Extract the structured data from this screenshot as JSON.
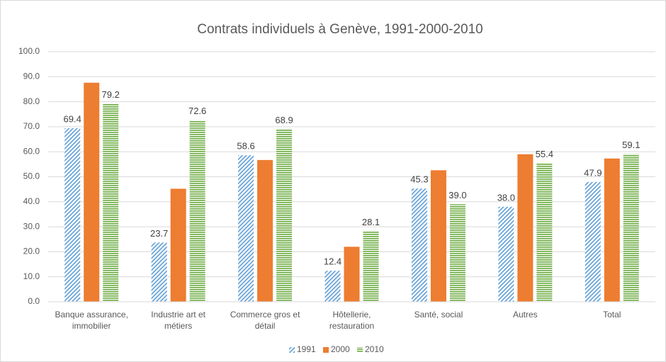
{
  "chart_data": {
    "type": "bar",
    "title": "Contrats individuels à Genève, 1991-2000-2010",
    "categories": [
      "Banque assurance,\nimmobilier",
      "Industrie art et\nmétiers",
      "Commerce gros et\ndétail",
      "Hôtellerie,\nrestauration",
      "Santé, social",
      "Autres",
      "Total"
    ],
    "series": [
      {
        "name": "1991",
        "color": "#5b9bd5",
        "pattern": "diagonal",
        "values": [
          69.4,
          23.7,
          58.6,
          12.4,
          45.3,
          38.0,
          47.9
        ],
        "value_labels": [
          "69.4",
          "23.7",
          "58.6",
          "12.4",
          "45.3",
          "38.0",
          "47.9"
        ]
      },
      {
        "name": "2000",
        "color": "#ed7d31",
        "pattern": "solid",
        "values": [
          87.6,
          45.2,
          56.7,
          22.0,
          52.6,
          59.0,
          57.3
        ]
      },
      {
        "name": "2010",
        "color": "#70ad47",
        "pattern": "horizontal",
        "values": [
          79.2,
          72.6,
          68.9,
          28.1,
          39.0,
          55.4,
          59.1
        ],
        "value_labels": [
          "79.2",
          "72.6",
          "68.9",
          "28.1",
          "39.0",
          "55.4",
          "59.1"
        ]
      }
    ],
    "ylim": [
      0,
      100
    ],
    "yticks": [
      {
        "value": 0,
        "label": "0.0"
      },
      {
        "value": 10,
        "label": "10.0"
      },
      {
        "value": 20,
        "label": "20.0"
      },
      {
        "value": 30,
        "label": "30.0"
      },
      {
        "value": 40,
        "label": "40.0"
      },
      {
        "value": 50,
        "label": "50.0"
      },
      {
        "value": 60,
        "label": "60.0"
      },
      {
        "value": 70,
        "label": "70.0"
      },
      {
        "value": 80,
        "label": "80.0"
      },
      {
        "value": 90,
        "label": "90.0"
      },
      {
        "value": 100,
        "label": "100.0"
      }
    ],
    "grid": true,
    "legend": "bottom"
  }
}
